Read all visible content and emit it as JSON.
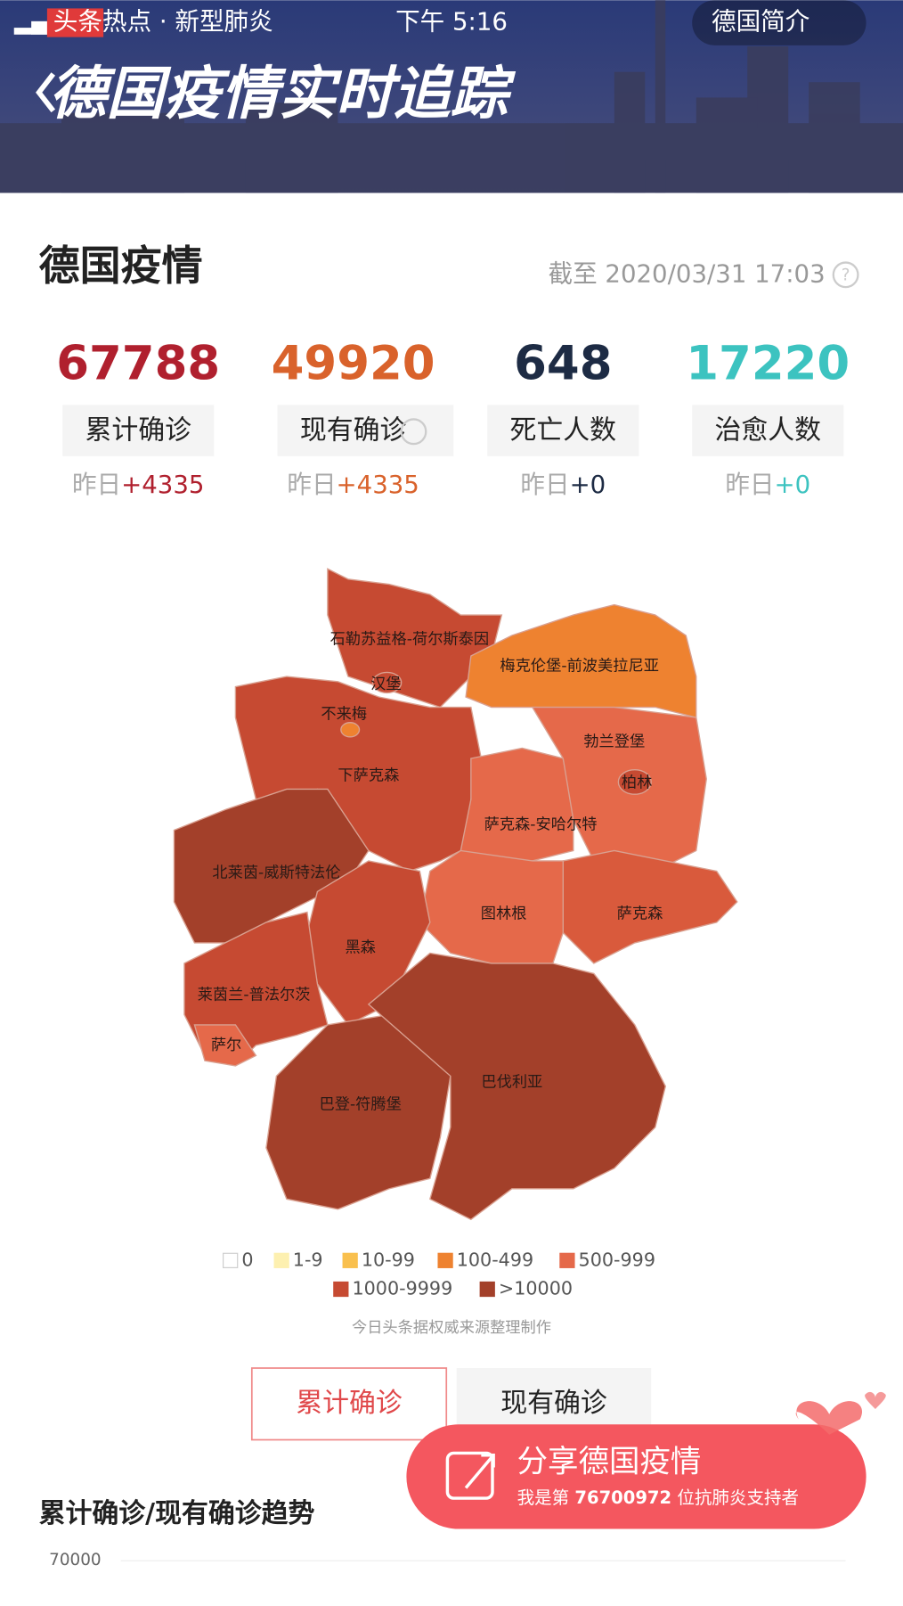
{
  "status_bar": {
    "channel": "头条热点 · 新型肺炎",
    "time": "下午 5:16",
    "intro": "德国简介"
  },
  "banner": {
    "title": "德国疫情实时追踪"
  },
  "summary": {
    "title": "德国疫情",
    "updated": "截至 2020/03/31 17:03",
    "stats": [
      {
        "value": 67788,
        "label": "累计确诊",
        "delta_prefix": "昨日",
        "delta": "+4335",
        "color": "#b0202e"
      },
      {
        "value": 49920,
        "label": "现有确诊",
        "delta_prefix": "昨日",
        "delta": "+4335",
        "color": "#d9622b"
      },
      {
        "value": 648,
        "label": "死亡人数",
        "delta_prefix": "昨日",
        "delta": "+0",
        "color": "#1d2b44"
      },
      {
        "value": 17220,
        "label": "治愈人数",
        "delta_prefix": "昨日",
        "delta": "+0",
        "color": "#3cc3c0"
      }
    ]
  },
  "map": {
    "regions": [
      {
        "name": "石勒苏益格-荷尔斯泰因",
        "color": "#c64a32"
      },
      {
        "name": "汉堡",
        "color": "#c64a32"
      },
      {
        "name": "梅克伦堡-前波美拉尼亚",
        "color": "#ee8230"
      },
      {
        "name": "不来梅",
        "color": "#ee8230"
      },
      {
        "name": "下萨克森",
        "color": "#c64a32"
      },
      {
        "name": "勃兰登堡",
        "color": "#e5694a"
      },
      {
        "name": "柏林",
        "color": "#c64a32"
      },
      {
        "name": "萨克森-安哈尔特",
        "color": "#e5694a"
      },
      {
        "name": "北莱茵-威斯特法伦",
        "color": "#a3402a"
      },
      {
        "name": "图林根",
        "color": "#e5694a"
      },
      {
        "name": "萨克森",
        "color": "#d95a3c"
      },
      {
        "name": "黑森",
        "color": "#c64a32"
      },
      {
        "name": "莱茵兰-普法尔茨",
        "color": "#c64a32"
      },
      {
        "name": "萨尔",
        "color": "#e5694a"
      },
      {
        "name": "巴伐利亚",
        "color": "#a3402a"
      },
      {
        "name": "巴登-符腾堡",
        "color": "#a3402a"
      }
    ],
    "legend": [
      {
        "label": "0",
        "color": "#ffffff"
      },
      {
        "label": "1-9",
        "color": "#fdf0b0"
      },
      {
        "label": "10-99",
        "color": "#f9c04e"
      },
      {
        "label": "100-499",
        "color": "#ee8230"
      },
      {
        "label": "500-999",
        "color": "#e5694a"
      },
      {
        "label": "1000-9999",
        "color": "#c64a32"
      },
      {
        "label": ">10000",
        "color": "#a3402a"
      }
    ],
    "source": "今日头条据权威来源整理制作"
  },
  "tabs": [
    "累计确诊",
    "现有确诊"
  ],
  "share": {
    "title": "分享德国疫情",
    "prefix": "我是第",
    "count": "76700972",
    "suffix": "位抗肺炎支持者"
  },
  "trend": {
    "title": "累计确诊/现有确诊趋势",
    "yticks": [
      70000
    ]
  }
}
